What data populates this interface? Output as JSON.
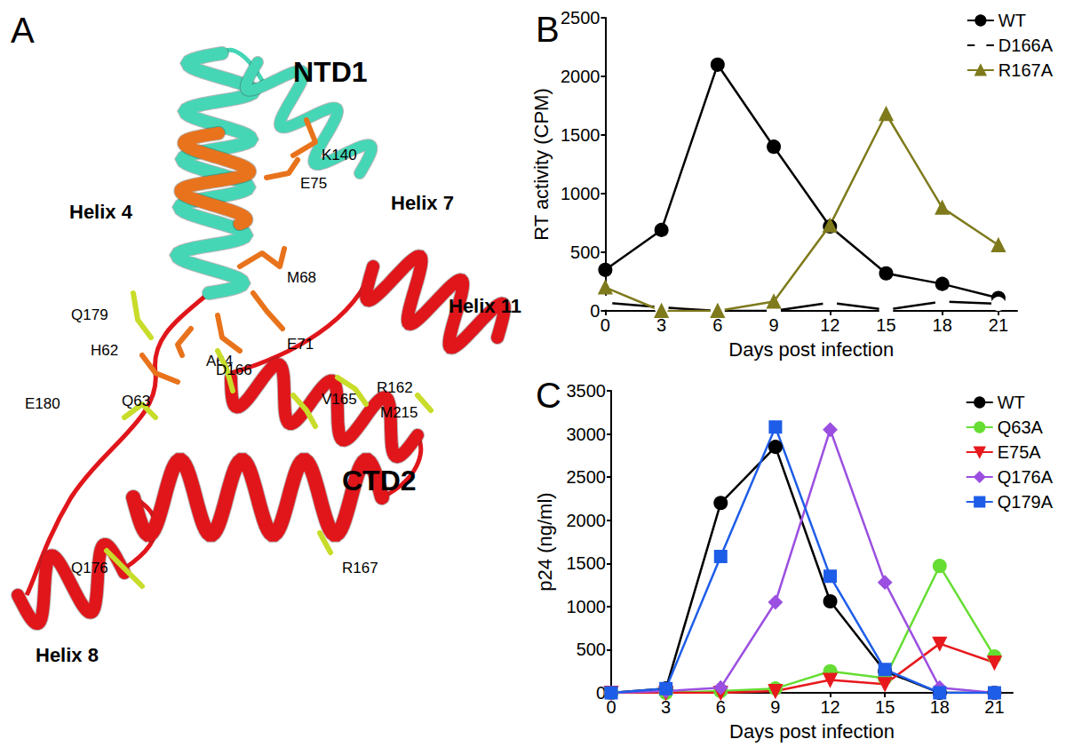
{
  "structure": {
    "panel": "A",
    "domains": [
      "NTD1",
      "CTD2"
    ],
    "helices": [
      "Helix 4",
      "Helix 7",
      "Helix 11",
      "Helix 8"
    ],
    "residues": [
      "K140",
      "E75",
      "M68",
      "H62",
      "E71",
      "A64",
      "Q179",
      "E180",
      "Q63",
      "D166",
      "R162",
      "M215",
      "V165",
      "Q176",
      "R167"
    ]
  },
  "chart_data": [
    {
      "panel": "B",
      "type": "line",
      "x_label": "Days post infection",
      "y_label": "RT activity (CPM)",
      "x": [
        0,
        3,
        6,
        9,
        12,
        15,
        18,
        21
      ],
      "xlim": [
        0,
        22
      ],
      "xticks": [
        0,
        3,
        6,
        9,
        12,
        15,
        18,
        21
      ],
      "ylim": [
        0,
        2500
      ],
      "yticks": [
        0,
        500,
        1000,
        1500,
        2000,
        2500
      ],
      "grid": false,
      "legend": "top-right",
      "series": [
        {
          "name": "WT",
          "color": "#000000",
          "marker": "circle",
          "values": [
            350,
            690,
            2100,
            1400,
            720,
            320,
            230,
            110
          ]
        },
        {
          "name": "D166A",
          "color": "#000000",
          "marker": "circle-open",
          "values": [
            70,
            30,
            0,
            0,
            70,
            10,
            80,
            60
          ]
        },
        {
          "name": "R167A",
          "color": "#7f7a1c",
          "marker": "triangle",
          "values": [
            200,
            0,
            0,
            80,
            730,
            1680,
            880,
            560
          ]
        }
      ]
    },
    {
      "panel": "C",
      "type": "line",
      "x_label": "Days post infection",
      "y_label": "p24 (ng/ml)",
      "x": [
        0,
        3,
        6,
        9,
        12,
        15,
        18,
        21
      ],
      "xlim": [
        0,
        22
      ],
      "xticks": [
        0,
        3,
        6,
        9,
        12,
        15,
        18,
        21
      ],
      "ylim": [
        0,
        3500
      ],
      "yticks": [
        0,
        500,
        1000,
        1500,
        2000,
        2500,
        3000,
        3500
      ],
      "grid": false,
      "legend": "top-right",
      "series": [
        {
          "name": "WT",
          "color": "#000000",
          "marker": "circle",
          "values": [
            0,
            50,
            2200,
            2850,
            1060,
            250,
            0,
            0
          ]
        },
        {
          "name": "Q63A",
          "color": "#66dd33",
          "marker": "circle",
          "values": [
            0,
            0,
            20,
            50,
            250,
            170,
            1470,
            420
          ]
        },
        {
          "name": "E75A",
          "color": "#e8191d",
          "marker": "triangle-down",
          "values": [
            0,
            0,
            0,
            20,
            150,
            100,
            570,
            350
          ]
        },
        {
          "name": "Q176A",
          "color": "#9b4fe0",
          "marker": "diamond",
          "values": [
            0,
            20,
            60,
            1050,
            3050,
            1280,
            60,
            0
          ]
        },
        {
          "name": "Q179A",
          "color": "#1e5de8",
          "marker": "square",
          "values": [
            0,
            50,
            1580,
            3080,
            1350,
            270,
            0,
            0
          ]
        }
      ]
    }
  ]
}
